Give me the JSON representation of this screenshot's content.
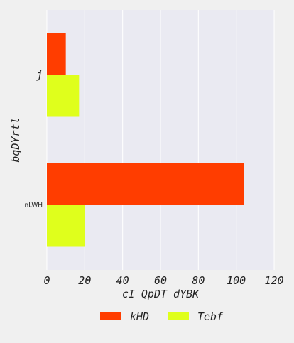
{
  "chart_data": {
    "type": "bar",
    "orientation": "horizontal",
    "categories": [
      "j",
      "nLWH"
    ],
    "series": [
      {
        "name": "kHD",
        "color": "#ff3d00",
        "values": [
          10,
          104
        ]
      },
      {
        "name": "Tebf",
        "color": "#dfff1c",
        "values": [
          17,
          20
        ]
      }
    ],
    "xlabel": "cI QpDT dYBK",
    "ylabel": "bqDYrtl",
    "xlim": [
      0,
      120
    ],
    "xticks": [
      0,
      20,
      40,
      60,
      80,
      100,
      120
    ],
    "grid": true,
    "legend": "bottom-center",
    "background": "#eaeaf2",
    "grid_color": "#ffffff"
  }
}
